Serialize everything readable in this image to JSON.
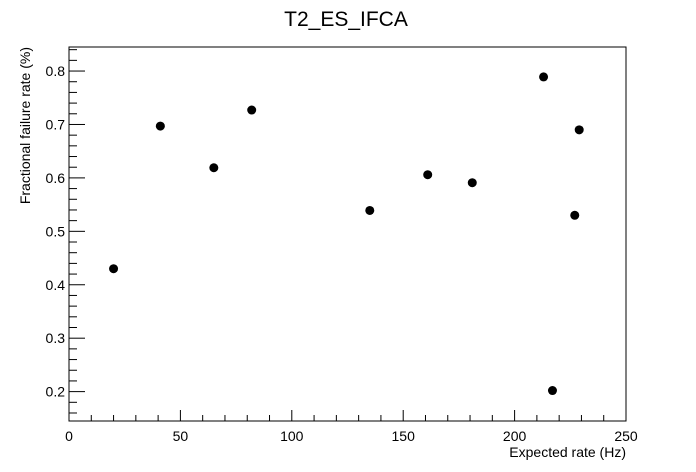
{
  "chart_data": {
    "type": "scatter",
    "title": "T2_ES_IFCA",
    "xlabel": "Expected rate (Hz)",
    "ylabel": "Fractional failure rate (%)",
    "xlim": [
      0,
      250
    ],
    "ylim": [
      0.145,
      0.845
    ],
    "x_ticks": [
      "0",
      "50",
      "100",
      "150",
      "200",
      "250"
    ],
    "y_ticks": [
      "0.2",
      "0.3",
      "0.4",
      "0.5",
      "0.6",
      "0.7",
      "0.8"
    ],
    "grid": false,
    "marker_color": "#000000",
    "points": [
      {
        "x": 20,
        "y": 0.43
      },
      {
        "x": 41,
        "y": 0.697
      },
      {
        "x": 65,
        "y": 0.619
      },
      {
        "x": 82,
        "y": 0.727
      },
      {
        "x": 135,
        "y": 0.539
      },
      {
        "x": 161,
        "y": 0.606
      },
      {
        "x": 181,
        "y": 0.591
      },
      {
        "x": 213,
        "y": 0.789
      },
      {
        "x": 217,
        "y": 0.202
      },
      {
        "x": 227,
        "y": 0.53
      },
      {
        "x": 229,
        "y": 0.69
      }
    ]
  }
}
